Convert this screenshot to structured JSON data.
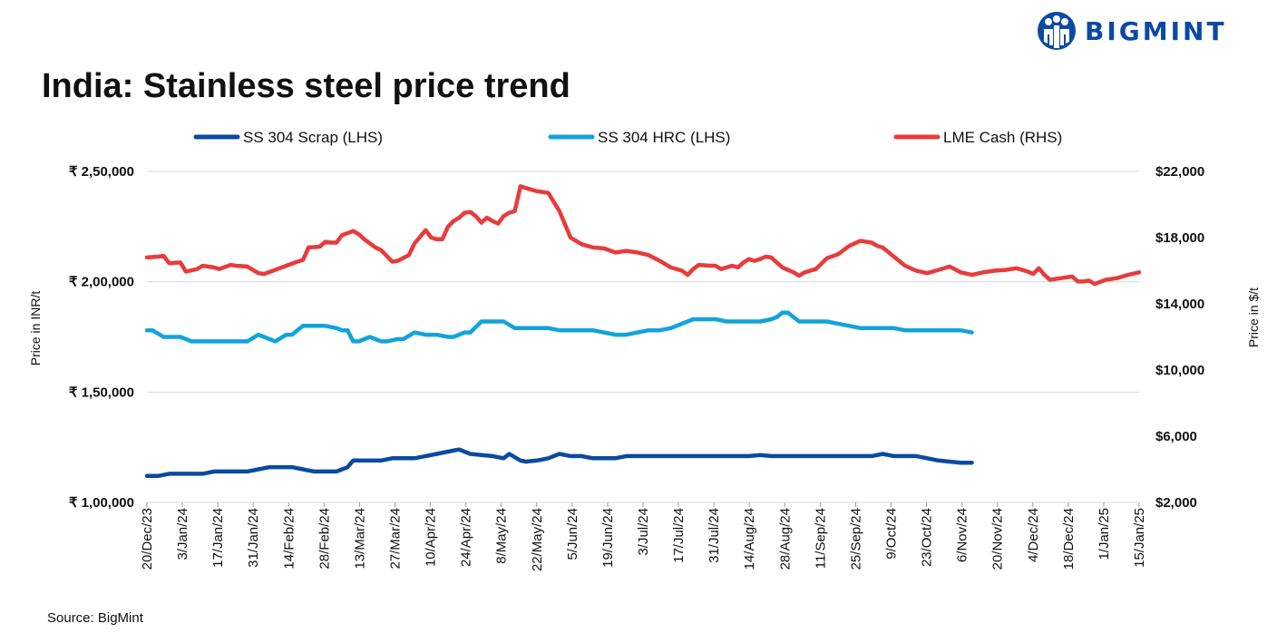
{
  "logo": {
    "text": "BIGMINT",
    "color": "#0b4aa2"
  },
  "title": "India: Stainless steel price trend",
  "source": "Source: BigMint",
  "chart_data": {
    "type": "line",
    "left_axis": {
      "label": "Price in INR/t",
      "min": 100000,
      "max": 250000,
      "ticks": [
        100000,
        150000,
        200000,
        250000
      ],
      "tick_labels": [
        "₹ 1,00,000",
        "₹ 1,50,000",
        "₹ 2,00,000",
        "₹ 2,50,000"
      ]
    },
    "right_axis": {
      "label": "Price in $/t",
      "min": 2000,
      "max": 22000,
      "ticks": [
        2000,
        6000,
        10000,
        14000,
        18000,
        22000
      ],
      "tick_labels": [
        "$2,000",
        "$6,000",
        "$10,000",
        "$14,000",
        "$18,000",
        "$22,000"
      ]
    },
    "x_tick_labels": [
      "20/Dec/23",
      "3/Jan/24",
      "17/Jan/24",
      "31/Jan/24",
      "14/Feb/24",
      "28/Feb/24",
      "13/Mar/24",
      "27/Mar/24",
      "10/Apr/24",
      "24/Apr/24",
      "8/May/24",
      "22/May/24",
      "5/Jun/24",
      "19/Jun/24",
      "3/Jul/24",
      "17/Jul/24",
      "31/Jul/24",
      "14/Aug/24",
      "28/Aug/24",
      "11/Sep/24",
      "25/Sep/24",
      "9/Oct/24",
      "23/Oct/24",
      "6/Nov/24",
      "20/Nov/24",
      "4/Dec/24",
      "18/Dec/24",
      "1/Jan/25",
      "15/Jan/25"
    ],
    "legend_position": "top",
    "grid": "horizontal",
    "series": [
      {
        "name": "SS 304 Scrap (LHS)",
        "axis": "left",
        "color": "#0a4aa0",
        "points": [
          [
            0,
            112000
          ],
          [
            2,
            112000
          ],
          [
            4,
            113000
          ],
          [
            6,
            113000
          ],
          [
            8,
            113000
          ],
          [
            10,
            113000
          ],
          [
            12,
            114000
          ],
          [
            14,
            114000
          ],
          [
            16,
            114000
          ],
          [
            18,
            114000
          ],
          [
            20,
            115000
          ],
          [
            22,
            116000
          ],
          [
            24,
            116000
          ],
          [
            26,
            116000
          ],
          [
            28,
            115000
          ],
          [
            30,
            114000
          ],
          [
            32,
            114000
          ],
          [
            34,
            114000
          ],
          [
            36,
            116000
          ],
          [
            37,
            119000
          ],
          [
            40,
            119000
          ],
          [
            42,
            119000
          ],
          [
            44,
            120000
          ],
          [
            46,
            120000
          ],
          [
            48,
            120000
          ],
          [
            50,
            121000
          ],
          [
            52,
            122000
          ],
          [
            54,
            123000
          ],
          [
            56,
            124000
          ],
          [
            58,
            122000
          ],
          [
            60,
            121500
          ],
          [
            62,
            121000
          ],
          [
            64,
            120000
          ],
          [
            65,
            122000
          ],
          [
            67,
            119000
          ],
          [
            68,
            118500
          ],
          [
            70,
            119000
          ],
          [
            72,
            120000
          ],
          [
            74,
            122000
          ],
          [
            76,
            121000
          ],
          [
            78,
            121000
          ],
          [
            80,
            120000
          ],
          [
            82,
            120000
          ],
          [
            84,
            120000
          ],
          [
            86,
            121000
          ],
          [
            88,
            121000
          ],
          [
            90,
            121000
          ],
          [
            92,
            121000
          ],
          [
            94,
            121000
          ],
          [
            96,
            121000
          ],
          [
            98,
            121000
          ],
          [
            100,
            121000
          ],
          [
            102,
            121000
          ],
          [
            104,
            121000
          ],
          [
            106,
            121000
          ],
          [
            108,
            121000
          ],
          [
            110,
            121500
          ],
          [
            112,
            121000
          ],
          [
            114,
            121000
          ],
          [
            116,
            121000
          ],
          [
            118,
            121000
          ],
          [
            120,
            121000
          ],
          [
            122,
            121000
          ],
          [
            124,
            121000
          ],
          [
            126,
            121000
          ],
          [
            128,
            121000
          ],
          [
            130,
            121000
          ],
          [
            132,
            122000
          ],
          [
            134,
            121000
          ],
          [
            136,
            121000
          ],
          [
            138,
            121000
          ],
          [
            140,
            120000
          ],
          [
            142,
            119000
          ],
          [
            144,
            118500
          ],
          [
            146,
            118000
          ],
          [
            148,
            118000
          ]
        ]
      },
      {
        "name": "SS 304 HRC (LHS)",
        "axis": "left",
        "color": "#12a3dc",
        "points": [
          [
            0,
            178000
          ],
          [
            1,
            178000
          ],
          [
            3,
            175000
          ],
          [
            5,
            175000
          ],
          [
            6,
            175000
          ],
          [
            8,
            173000
          ],
          [
            10,
            173000
          ],
          [
            12,
            173000
          ],
          [
            14,
            173000
          ],
          [
            16,
            173000
          ],
          [
            18,
            173000
          ],
          [
            20,
            176000
          ],
          [
            22,
            174000
          ],
          [
            23,
            173000
          ],
          [
            25,
            176000
          ],
          [
            26,
            176000
          ],
          [
            28,
            180000
          ],
          [
            32,
            180000
          ],
          [
            34,
            179000
          ],
          [
            35,
            178000
          ],
          [
            36,
            178000
          ],
          [
            37,
            173000
          ],
          [
            38,
            173000
          ],
          [
            40,
            175000
          ],
          [
            42,
            173000
          ],
          [
            43,
            173000
          ],
          [
            45,
            174000
          ],
          [
            46,
            174000
          ],
          [
            48,
            177000
          ],
          [
            50,
            176000
          ],
          [
            52,
            176000
          ],
          [
            54,
            175000
          ],
          [
            55,
            175000
          ],
          [
            57,
            177000
          ],
          [
            58,
            177000
          ],
          [
            60,
            182000
          ],
          [
            64,
            182000
          ],
          [
            66,
            179000
          ],
          [
            70,
            179000
          ],
          [
            72,
            179000
          ],
          [
            74,
            178000
          ],
          [
            78,
            178000
          ],
          [
            80,
            178000
          ],
          [
            82,
            177000
          ],
          [
            84,
            176000
          ],
          [
            86,
            176000
          ],
          [
            88,
            177000
          ],
          [
            90,
            178000
          ],
          [
            92,
            178000
          ],
          [
            94,
            179000
          ],
          [
            96,
            181000
          ],
          [
            98,
            183000
          ],
          [
            102,
            183000
          ],
          [
            104,
            182000
          ],
          [
            108,
            182000
          ],
          [
            110,
            182000
          ],
          [
            112,
            183000
          ],
          [
            113,
            184000
          ],
          [
            114,
            186000
          ],
          [
            115,
            186000
          ],
          [
            117,
            182000
          ],
          [
            118,
            182000
          ],
          [
            122,
            182000
          ],
          [
            124,
            181000
          ],
          [
            126,
            180000
          ],
          [
            128,
            179000
          ],
          [
            130,
            179000
          ],
          [
            134,
            179000
          ],
          [
            136,
            178000
          ],
          [
            138,
            178000
          ],
          [
            140,
            178000
          ],
          [
            142,
            178000
          ],
          [
            144,
            178000
          ],
          [
            146,
            178000
          ],
          [
            148,
            177000
          ]
        ]
      },
      {
        "name": "LME Cash (RHS)",
        "axis": "right",
        "color": "#e73c3c",
        "points": [
          [
            0,
            16800
          ],
          [
            2,
            16850
          ],
          [
            3,
            16900
          ],
          [
            4,
            16450
          ],
          [
            6,
            16500
          ],
          [
            7,
            15950
          ],
          [
            9,
            16100
          ],
          [
            10,
            16300
          ],
          [
            12,
            16200
          ],
          [
            13,
            16100
          ],
          [
            15,
            16350
          ],
          [
            16,
            16300
          ],
          [
            18,
            16250
          ],
          [
            20,
            15850
          ],
          [
            21,
            15800
          ],
          [
            23,
            16050
          ],
          [
            25,
            16300
          ],
          [
            27,
            16550
          ],
          [
            28,
            16650
          ],
          [
            29,
            17400
          ],
          [
            31,
            17450
          ],
          [
            32,
            17750
          ],
          [
            33,
            17700
          ],
          [
            34,
            17700
          ],
          [
            35,
            18150
          ],
          [
            37,
            18400
          ],
          [
            38,
            18200
          ],
          [
            39,
            17900
          ],
          [
            41,
            17400
          ],
          [
            42,
            17250
          ],
          [
            44,
            16550
          ],
          [
            45,
            16600
          ],
          [
            47,
            16950
          ],
          [
            48,
            17650
          ],
          [
            50,
            18450
          ],
          [
            51,
            18000
          ],
          [
            52,
            17900
          ],
          [
            53,
            17900
          ],
          [
            54,
            18650
          ],
          [
            55,
            19000
          ],
          [
            56,
            19200
          ],
          [
            57,
            19500
          ],
          [
            58,
            19550
          ],
          [
            59,
            19300
          ],
          [
            60,
            18900
          ],
          [
            61,
            19200
          ],
          [
            62,
            19000
          ],
          [
            63,
            18850
          ],
          [
            64,
            19300
          ],
          [
            65,
            19500
          ],
          [
            66,
            19600
          ],
          [
            67,
            21100
          ],
          [
            68,
            21000
          ],
          [
            70,
            20800
          ],
          [
            72,
            20700
          ],
          [
            74,
            19600
          ],
          [
            76,
            18000
          ],
          [
            78,
            17600
          ],
          [
            80,
            17400
          ],
          [
            82,
            17350
          ],
          [
            84,
            17100
          ],
          [
            86,
            17200
          ],
          [
            88,
            17100
          ],
          [
            90,
            16950
          ],
          [
            92,
            16600
          ],
          [
            94,
            16200
          ],
          [
            96,
            16000
          ],
          [
            97,
            15750
          ],
          [
            98,
            16100
          ],
          [
            99,
            16350
          ],
          [
            101,
            16300
          ],
          [
            102,
            16300
          ],
          [
            103,
            16100
          ],
          [
            105,
            16300
          ],
          [
            106,
            16200
          ],
          [
            107,
            16500
          ],
          [
            108,
            16700
          ],
          [
            109,
            16600
          ],
          [
            110,
            16700
          ],
          [
            111,
            16850
          ],
          [
            112,
            16800
          ],
          [
            113,
            16500
          ],
          [
            114,
            16200
          ],
          [
            116,
            15900
          ],
          [
            117,
            15700
          ],
          [
            118,
            15900
          ],
          [
            120,
            16100
          ],
          [
            122,
            16750
          ],
          [
            124,
            17000
          ],
          [
            126,
            17500
          ],
          [
            128,
            17800
          ],
          [
            130,
            17700
          ],
          [
            131,
            17500
          ],
          [
            132,
            17400
          ],
          [
            134,
            16850
          ],
          [
            136,
            16300
          ],
          [
            138,
            16000
          ],
          [
            140,
            15850
          ],
          [
            142,
            16050
          ],
          [
            144,
            16250
          ],
          [
            146,
            15900
          ],
          [
            148,
            15750
          ],
          [
            150,
            15900
          ],
          [
            152,
            16000
          ],
          [
            154,
            16050
          ],
          [
            156,
            16150
          ],
          [
            158,
            15950
          ],
          [
            159,
            15800
          ],
          [
            160,
            16150
          ],
          [
            161,
            15750
          ],
          [
            162,
            15450
          ],
          [
            164,
            15550
          ],
          [
            166,
            15650
          ],
          [
            167,
            15350
          ],
          [
            168,
            15350
          ],
          [
            169,
            15400
          ],
          [
            170,
            15200
          ],
          [
            172,
            15450
          ],
          [
            174,
            15550
          ],
          [
            176,
            15750
          ],
          [
            178,
            15900
          ]
        ]
      }
    ]
  }
}
